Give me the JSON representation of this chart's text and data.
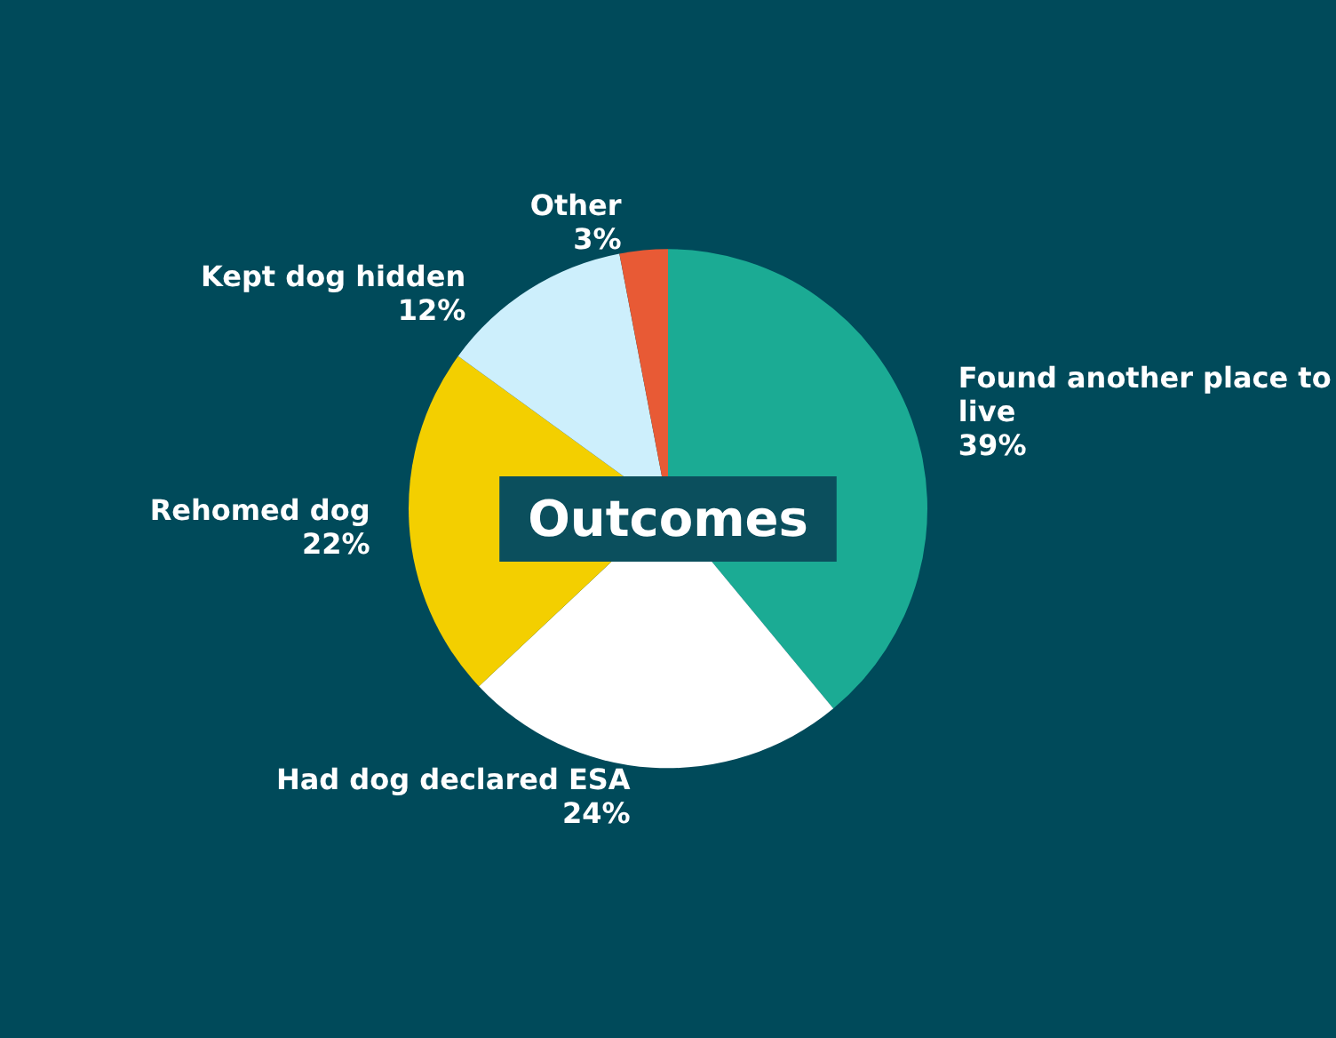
{
  "chart_data": {
    "type": "pie",
    "title": "Outcomes",
    "categories": [
      "Found another place to live",
      "Had dog declared ESA",
      "Rehomed dog",
      "Kept dog hidden",
      "Other"
    ],
    "values": [
      39,
      24,
      22,
      12,
      3
    ],
    "value_labels": [
      "39%",
      "24%",
      "22%",
      "12%",
      "3%"
    ],
    "colors": [
      "#1bab94",
      "#ffffff",
      "#f3cf00",
      "#cdeffc",
      "#e85a35"
    ]
  }
}
